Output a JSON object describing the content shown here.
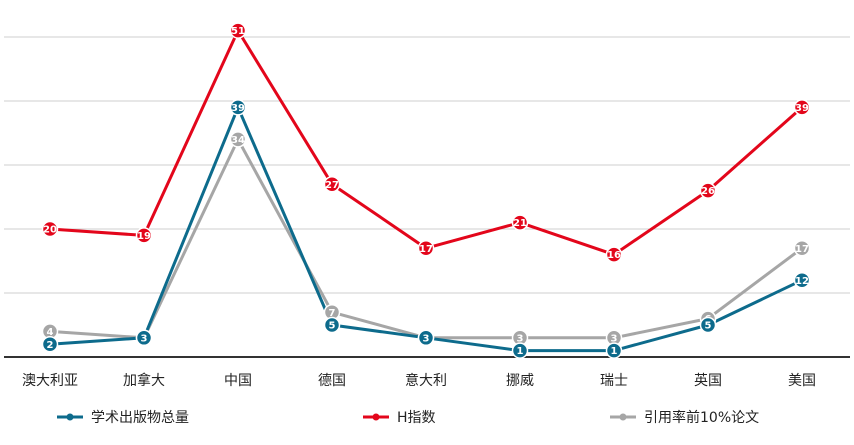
{
  "chart_data": {
    "type": "line",
    "title": "",
    "xlabel": "",
    "ylabel": "",
    "ylim": [
      0,
      56
    ],
    "grid": true,
    "legend": "bottom",
    "categories": [
      "澳大利亚",
      "加拿大",
      "中国",
      "德国",
      "意大利",
      "挪威",
      "瑞士",
      "英国",
      "美国"
    ],
    "series": [
      {
        "name": "学术出版物总量",
        "color": "#0d6b8c",
        "values": [
          2,
          3,
          39,
          5,
          3,
          1,
          1,
          5,
          12
        ],
        "labels": [
          "2",
          "3",
          "39",
          "5",
          "3",
          "1",
          "1",
          "5",
          "12"
        ]
      },
      {
        "name": "H指数",
        "color": "#e3061b",
        "values": [
          20,
          19,
          51,
          27,
          17,
          21,
          16,
          26,
          39
        ],
        "labels": [
          "20",
          "19",
          "51",
          "27",
          "17",
          "21",
          "16",
          "26",
          "39"
        ]
      },
      {
        "name": "引用率前10%论文",
        "color": "#a6a6a6",
        "values": [
          4,
          3,
          34,
          7,
          3,
          3,
          3,
          6,
          17
        ],
        "labels": [
          "4",
          "3",
          "34",
          "7",
          "3",
          "3",
          "3",
          "6",
          "17"
        ]
      }
    ]
  }
}
